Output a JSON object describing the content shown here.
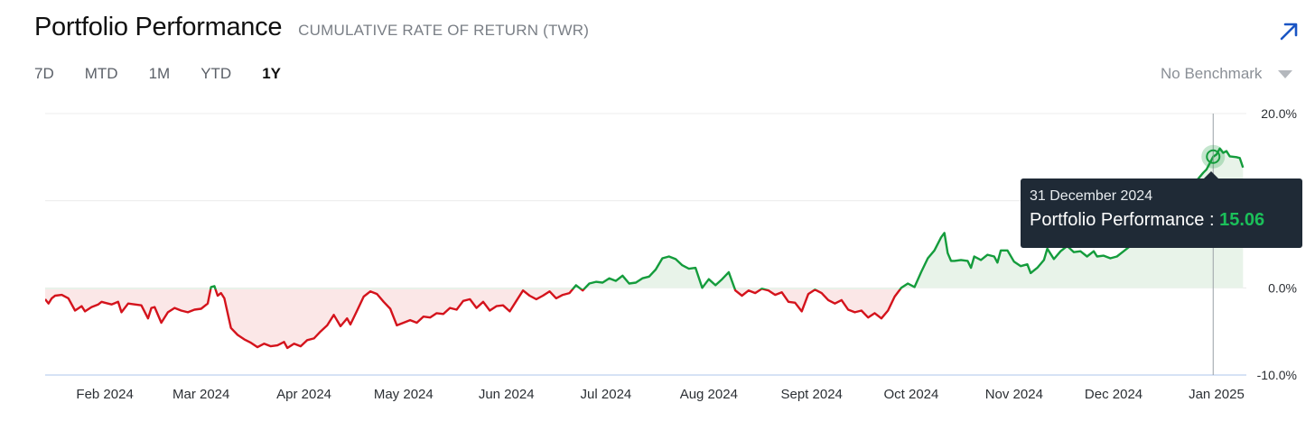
{
  "header": {
    "title": "Portfolio Performance",
    "subtitle": "CUMULATIVE RATE OF RETURN (TWR)",
    "expand_icon": "arrow-up-right-icon"
  },
  "ranges": [
    "7D",
    "MTD",
    "1M",
    "YTD",
    "1Y"
  ],
  "active_range": "1Y",
  "benchmark": {
    "label": "No Benchmark",
    "icon": "caret-down-icon"
  },
  "tooltip": {
    "date": "31 December 2024",
    "series": "Portfolio Performance",
    "separator": " : ",
    "value": "15.06"
  },
  "colors": {
    "positive": "#149c3c",
    "negative": "#d4131c",
    "positive_fill": "#e8f3e9",
    "negative_fill": "#fbe7e7",
    "accent": "#1a55c4"
  },
  "chart_data": {
    "type": "area",
    "title": "",
    "xlabel": "",
    "ylabel": "",
    "ylim": [
      -10,
      20
    ],
    "y_ticks": [
      "20.0%",
      "0.0%",
      "-10.0%"
    ],
    "x_ticks": [
      "Feb 2024",
      "Mar 2024",
      "Apr 2024",
      "May 2024",
      "Jun 2024",
      "Jul 2024",
      "Aug 2024",
      "Sept 2024",
      "Oct 2024",
      "Nov 2024",
      "Dec 2024",
      "Jan 2025"
    ],
    "x_range": [
      "2024-01-14",
      "2025-01-10"
    ],
    "grid": true,
    "highlight": {
      "date": "2024-12-31",
      "value": 15.06
    },
    "series": [
      {
        "name": "Portfolio Performance",
        "points": [
          [
            "2024-01-14",
            -1.3
          ],
          [
            "2024-01-15",
            -1.8
          ],
          [
            "2024-01-16",
            -1.2
          ],
          [
            "2024-01-17",
            -0.9
          ],
          [
            "2024-01-19",
            -0.8
          ],
          [
            "2024-01-21",
            -1.2
          ],
          [
            "2024-01-23",
            -2.6
          ],
          [
            "2024-01-25",
            -2.1
          ],
          [
            "2024-01-26",
            -2.7
          ],
          [
            "2024-01-28",
            -2.2
          ],
          [
            "2024-01-30",
            -1.9
          ],
          [
            "2024-01-31",
            -1.6
          ],
          [
            "2024-02-01",
            -1.7
          ],
          [
            "2024-02-03",
            -1.9
          ],
          [
            "2024-02-05",
            -1.6
          ],
          [
            "2024-02-06",
            -2.8
          ],
          [
            "2024-02-08",
            -1.8
          ],
          [
            "2024-02-10",
            -1.9
          ],
          [
            "2024-02-12",
            -2.0
          ],
          [
            "2024-02-14",
            -3.5
          ],
          [
            "2024-02-15",
            -2.3
          ],
          [
            "2024-02-16",
            -2.2
          ],
          [
            "2024-02-18",
            -4.0
          ],
          [
            "2024-02-20",
            -2.8
          ],
          [
            "2024-02-22",
            -2.3
          ],
          [
            "2024-02-24",
            -2.6
          ],
          [
            "2024-02-26",
            -2.8
          ],
          [
            "2024-02-28",
            -2.5
          ],
          [
            "2024-03-01",
            -2.4
          ],
          [
            "2024-03-03",
            -1.8
          ],
          [
            "2024-03-04",
            0.1
          ],
          [
            "2024-03-05",
            0.2
          ],
          [
            "2024-03-06",
            -0.9
          ],
          [
            "2024-03-07",
            -0.6
          ],
          [
            "2024-03-08",
            -1.2
          ],
          [
            "2024-03-10",
            -4.6
          ],
          [
            "2024-03-12",
            -5.4
          ],
          [
            "2024-03-14",
            -5.9
          ],
          [
            "2024-03-16",
            -6.3
          ],
          [
            "2024-03-18",
            -6.8
          ],
          [
            "2024-03-20",
            -6.4
          ],
          [
            "2024-03-22",
            -6.7
          ],
          [
            "2024-03-24",
            -6.6
          ],
          [
            "2024-03-26",
            -6.2
          ],
          [
            "2024-03-27",
            -6.9
          ],
          [
            "2024-03-29",
            -6.4
          ],
          [
            "2024-03-31",
            -6.7
          ],
          [
            "2024-04-02",
            -6.0
          ],
          [
            "2024-04-04",
            -5.8
          ],
          [
            "2024-04-06",
            -5.0
          ],
          [
            "2024-04-08",
            -4.3
          ],
          [
            "2024-04-10",
            -3.1
          ],
          [
            "2024-04-12",
            -4.4
          ],
          [
            "2024-04-14",
            -3.5
          ],
          [
            "2024-04-15",
            -4.2
          ],
          [
            "2024-04-17",
            -2.6
          ],
          [
            "2024-04-19",
            -1.0
          ],
          [
            "2024-04-21",
            -0.4
          ],
          [
            "2024-04-23",
            -0.7
          ],
          [
            "2024-04-25",
            -1.6
          ],
          [
            "2024-04-27",
            -2.4
          ],
          [
            "2024-04-29",
            -4.3
          ],
          [
            "2024-05-01",
            -4.0
          ],
          [
            "2024-05-03",
            -3.7
          ],
          [
            "2024-05-05",
            -4.0
          ],
          [
            "2024-05-07",
            -3.3
          ],
          [
            "2024-05-09",
            -3.4
          ],
          [
            "2024-05-11",
            -2.9
          ],
          [
            "2024-05-13",
            -3.0
          ],
          [
            "2024-05-15",
            -2.3
          ],
          [
            "2024-05-17",
            -2.5
          ],
          [
            "2024-05-19",
            -1.5
          ],
          [
            "2024-05-21",
            -1.3
          ],
          [
            "2024-05-23",
            -2.3
          ],
          [
            "2024-05-25",
            -1.6
          ],
          [
            "2024-05-27",
            -2.6
          ],
          [
            "2024-05-29",
            -2.1
          ],
          [
            "2024-05-31",
            -2.0
          ],
          [
            "2024-06-02",
            -2.7
          ],
          [
            "2024-06-04",
            -1.5
          ],
          [
            "2024-06-06",
            -0.3
          ],
          [
            "2024-06-08",
            -0.9
          ],
          [
            "2024-06-10",
            -1.3
          ],
          [
            "2024-06-12",
            -0.9
          ],
          [
            "2024-06-14",
            -0.4
          ],
          [
            "2024-06-16",
            -1.2
          ],
          [
            "2024-06-18",
            -0.8
          ],
          [
            "2024-06-20",
            -0.6
          ],
          [
            "2024-06-22",
            0.3
          ],
          [
            "2024-06-24",
            -0.3
          ],
          [
            "2024-06-26",
            0.5
          ],
          [
            "2024-06-28",
            0.7
          ],
          [
            "2024-06-30",
            0.6
          ],
          [
            "2024-07-02",
            1.1
          ],
          [
            "2024-07-04",
            0.8
          ],
          [
            "2024-07-06",
            1.4
          ],
          [
            "2024-07-08",
            0.5
          ],
          [
            "2024-07-10",
            0.6
          ],
          [
            "2024-07-12",
            1.1
          ],
          [
            "2024-07-14",
            1.3
          ],
          [
            "2024-07-16",
            2.1
          ],
          [
            "2024-07-18",
            3.4
          ],
          [
            "2024-07-20",
            3.6
          ],
          [
            "2024-07-22",
            3.3
          ],
          [
            "2024-07-24",
            2.6
          ],
          [
            "2024-07-26",
            2.2
          ],
          [
            "2024-07-28",
            2.3
          ],
          [
            "2024-07-30",
            0.0
          ],
          [
            "2024-08-01",
            1.0
          ],
          [
            "2024-08-03",
            0.3
          ],
          [
            "2024-08-05",
            1.0
          ],
          [
            "2024-08-07",
            1.8
          ],
          [
            "2024-08-09",
            -0.3
          ],
          [
            "2024-08-11",
            -0.9
          ],
          [
            "2024-08-13",
            -0.3
          ],
          [
            "2024-08-15",
            -0.6
          ],
          [
            "2024-08-17",
            -0.1
          ],
          [
            "2024-08-19",
            -0.3
          ],
          [
            "2024-08-21",
            -0.8
          ],
          [
            "2024-08-23",
            -0.5
          ],
          [
            "2024-08-25",
            -1.6
          ],
          [
            "2024-08-27",
            -1.7
          ],
          [
            "2024-08-29",
            -2.7
          ],
          [
            "2024-08-31",
            -0.7
          ],
          [
            "2024-09-02",
            -0.2
          ],
          [
            "2024-09-04",
            -0.6
          ],
          [
            "2024-09-06",
            -1.4
          ],
          [
            "2024-09-08",
            -1.8
          ],
          [
            "2024-09-10",
            -1.4
          ],
          [
            "2024-09-12",
            -2.5
          ],
          [
            "2024-09-14",
            -2.8
          ],
          [
            "2024-09-16",
            -2.6
          ],
          [
            "2024-09-18",
            -3.4
          ],
          [
            "2024-09-20",
            -2.9
          ],
          [
            "2024-09-22",
            -3.5
          ],
          [
            "2024-09-24",
            -2.6
          ],
          [
            "2024-09-26",
            -1.0
          ],
          [
            "2024-09-28",
            0.0
          ],
          [
            "2024-09-30",
            0.5
          ],
          [
            "2024-10-02",
            0.1
          ],
          [
            "2024-10-04",
            1.8
          ],
          [
            "2024-10-06",
            3.4
          ],
          [
            "2024-10-08",
            4.3
          ],
          [
            "2024-10-10",
            5.8
          ],
          [
            "2024-10-11",
            6.3
          ],
          [
            "2024-10-12",
            4.0
          ],
          [
            "2024-10-13",
            3.1
          ],
          [
            "2024-10-14",
            3.1
          ],
          [
            "2024-10-16",
            3.2
          ],
          [
            "2024-10-18",
            3.1
          ],
          [
            "2024-10-19",
            2.3
          ],
          [
            "2024-10-20",
            3.6
          ],
          [
            "2024-10-22",
            3.2
          ],
          [
            "2024-10-24",
            3.8
          ],
          [
            "2024-10-26",
            3.6
          ],
          [
            "2024-10-27",
            2.9
          ],
          [
            "2024-10-28",
            4.3
          ],
          [
            "2024-10-30",
            4.3
          ],
          [
            "2024-11-01",
            3.0
          ],
          [
            "2024-11-03",
            2.5
          ],
          [
            "2024-11-05",
            2.7
          ],
          [
            "2024-11-06",
            1.7
          ],
          [
            "2024-11-08",
            2.3
          ],
          [
            "2024-11-10",
            3.2
          ],
          [
            "2024-11-11",
            4.5
          ],
          [
            "2024-11-13",
            3.3
          ],
          [
            "2024-11-15",
            4.2
          ],
          [
            "2024-11-17",
            4.8
          ],
          [
            "2024-11-19",
            4.1
          ],
          [
            "2024-11-21",
            4.2
          ],
          [
            "2024-11-23",
            3.6
          ],
          [
            "2024-11-25",
            4.2
          ],
          [
            "2024-11-26",
            3.6
          ],
          [
            "2024-11-28",
            3.7
          ],
          [
            "2024-11-30",
            3.4
          ],
          [
            "2024-12-02",
            3.6
          ],
          [
            "2024-12-04",
            4.2
          ],
          [
            "2024-12-06",
            4.8
          ],
          [
            "2024-12-10",
            6.0
          ],
          [
            "2024-12-14",
            7.1
          ],
          [
            "2024-12-18",
            8.3
          ],
          [
            "2024-12-22",
            10.3
          ],
          [
            "2024-12-26",
            12.3
          ],
          [
            "2024-12-28",
            13.2
          ],
          [
            "2024-12-29",
            13.6
          ],
          [
            "2024-12-31",
            15.06
          ],
          [
            "2025-01-01",
            15.3
          ],
          [
            "2025-01-02",
            16.0
          ],
          [
            "2025-01-03",
            15.5
          ],
          [
            "2025-01-04",
            15.7
          ],
          [
            "2025-01-05",
            15.1
          ],
          [
            "2025-01-07",
            15.0
          ],
          [
            "2025-01-08",
            14.9
          ],
          [
            "2025-01-09",
            13.8
          ]
        ]
      }
    ]
  }
}
